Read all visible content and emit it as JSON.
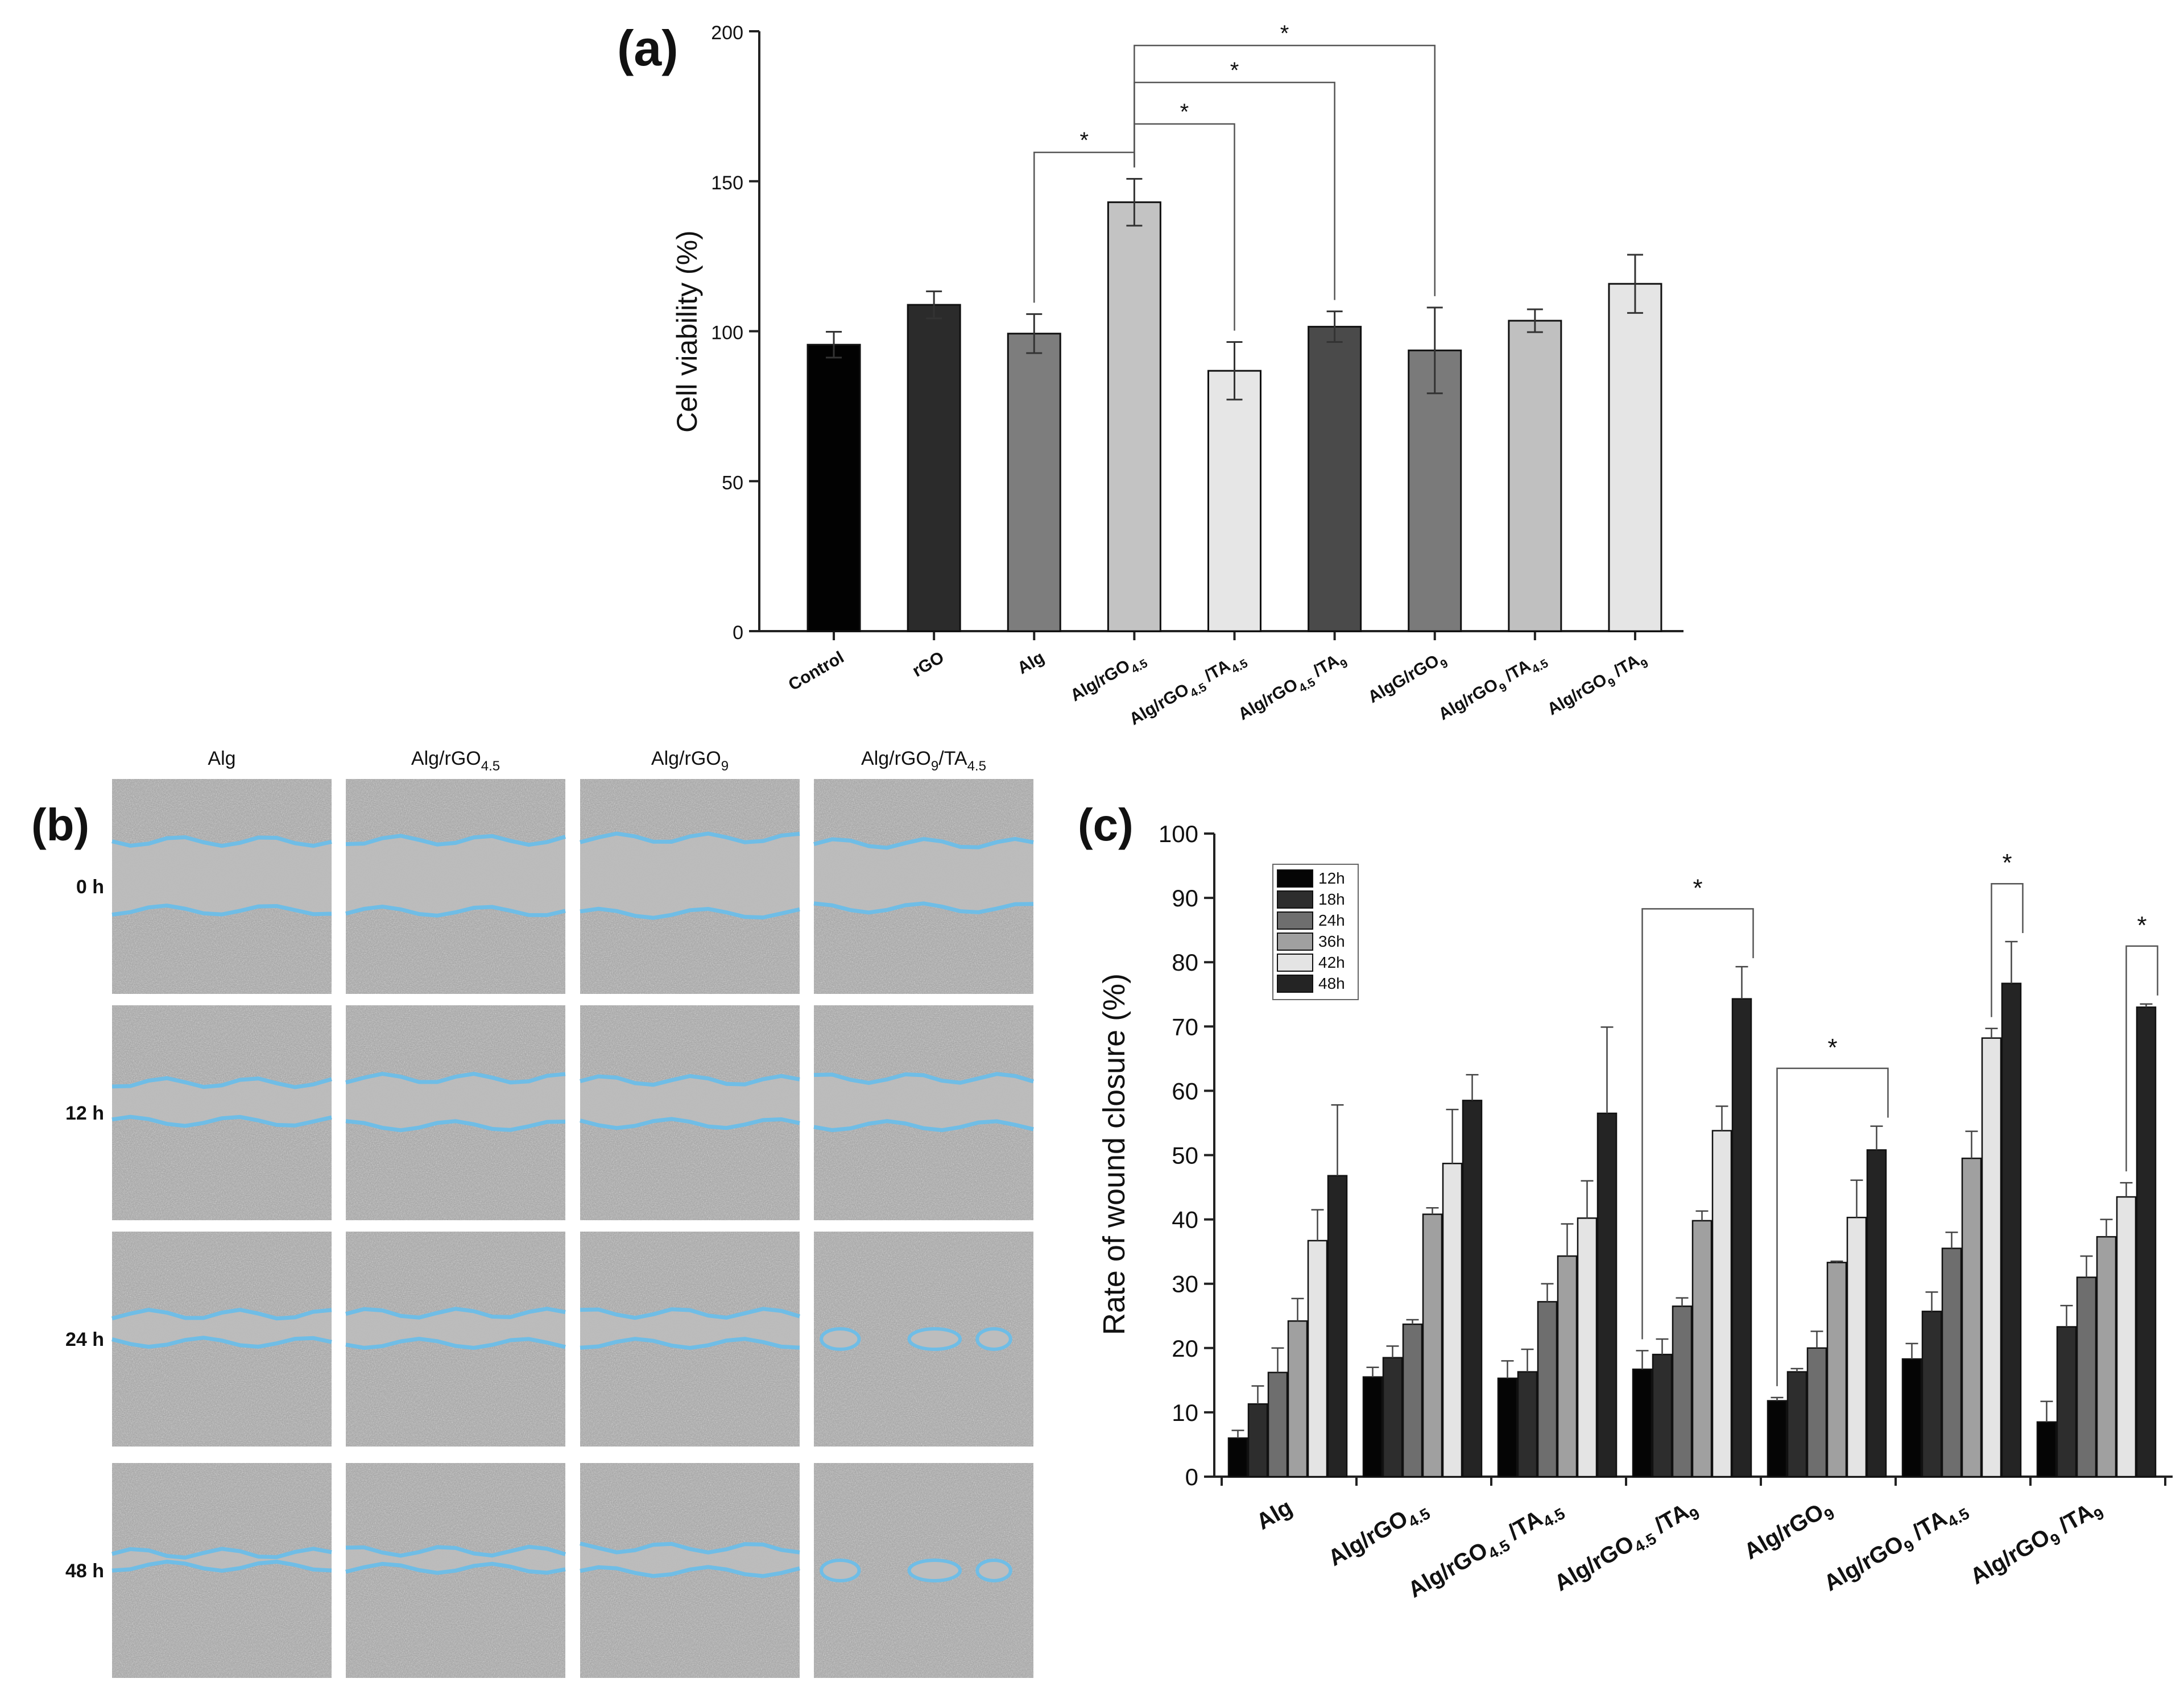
{
  "panel_labels": {
    "a": "(a)",
    "b": "(b)",
    "c": "(c)"
  },
  "chart_data": [
    {
      "id": "a",
      "type": "bar",
      "ylabel": "Cell viability (%)",
      "xlabel": "",
      "ylim": [
        0,
        200
      ],
      "yticks": [
        0,
        50,
        100,
        150,
        200
      ],
      "categories": [
        {
          "name": "Control",
          "base": "Control",
          "sub": ""
        },
        {
          "name": "rGO",
          "base": "rGO",
          "sub": ""
        },
        {
          "name": "Alg",
          "base": "Alg",
          "sub": ""
        },
        {
          "name": "Alg/rGO4.5",
          "base": "Alg/rGO",
          "sub": "4.5"
        },
        {
          "name": "Alg/rGO4.5 /TA4.5",
          "parts": [
            [
              "Alg/rGO",
              ""
            ],
            [
              "4.5",
              "sub"
            ],
            [
              " /TA",
              ""
            ],
            [
              "4.5",
              "sub"
            ]
          ]
        },
        {
          "name": "Alg/rGO4.5 /TA9",
          "parts": [
            [
              "Alg/rGO",
              ""
            ],
            [
              "4.5",
              "sub"
            ],
            [
              " /TA",
              ""
            ],
            [
              "9",
              "sub"
            ]
          ]
        },
        {
          "name": "AlgG/rGO9",
          "parts": [
            [
              "AlgG/rGO",
              ""
            ],
            [
              "9",
              "sub"
            ]
          ]
        },
        {
          "name": "Alg/rGO9 /TA4.5",
          "parts": [
            [
              "Alg/rGO",
              ""
            ],
            [
              "9",
              "sub"
            ],
            [
              " /TA",
              ""
            ],
            [
              "4.5",
              "sub"
            ]
          ]
        },
        {
          "name": "Alg/rGO9 /TA9",
          "parts": [
            [
              "Alg/rGO",
              ""
            ],
            [
              "9",
              "sub"
            ],
            [
              " /TA",
              ""
            ],
            [
              "9",
              "sub"
            ]
          ]
        }
      ],
      "values": [
        95.5,
        108.8,
        99.2,
        143.0,
        86.8,
        101.5,
        93.6,
        103.5,
        115.8
      ],
      "errors": [
        4.3,
        4.5,
        6.5,
        7.8,
        9.6,
        5.1,
        14.3,
        3.8,
        9.7
      ],
      "colors": [
        "#020202",
        "#2b2b2b",
        "#7d7d7d",
        "#c3c3c3",
        "#e6e6e6",
        "#4a4a4a",
        "#7a7a7a",
        "#c0c0c0",
        "#e5e5e5"
      ],
      "significance": [
        {
          "from": 2,
          "to": 3,
          "label": "*"
        },
        {
          "from": 3,
          "to": 4,
          "label": "*"
        },
        {
          "from": 3,
          "to": 5,
          "label": "*"
        },
        {
          "from": 3,
          "to": 6,
          "label": "*"
        }
      ]
    },
    {
      "id": "c",
      "type": "bar",
      "ylabel": "Rate of wound closure (%)",
      "xlabel": "",
      "ylim": [
        0,
        100
      ],
      "yticks": [
        0,
        10,
        20,
        30,
        40,
        50,
        60,
        70,
        80,
        90,
        100
      ],
      "legend_position": "top-left",
      "categories": [
        {
          "name": "Alg",
          "parts": [
            [
              "Alg",
              ""
            ]
          ]
        },
        {
          "name": "Alg/rGO4.5",
          "parts": [
            [
              "Alg/rGO",
              ""
            ],
            [
              "4.5",
              "sub"
            ]
          ]
        },
        {
          "name": "Alg/rGO4.5 /TA4.5",
          "parts": [
            [
              "Alg/rGO",
              ""
            ],
            [
              "4.5",
              "sub"
            ],
            [
              " /TA",
              ""
            ],
            [
              "4.5",
              "sub"
            ]
          ]
        },
        {
          "name": "Alg/rGO4.5 /TA9",
          "parts": [
            [
              "Alg/rGO",
              ""
            ],
            [
              "4.5",
              "sub"
            ],
            [
              " /TA",
              ""
            ],
            [
              "9",
              "sub"
            ]
          ]
        },
        {
          "name": "Alg/rGO9",
          "parts": [
            [
              "Alg/rGO",
              ""
            ],
            [
              "9",
              "sub"
            ]
          ]
        },
        {
          "name": "Alg/rGO9 /TA4.5",
          "parts": [
            [
              "Alg/rGO",
              ""
            ],
            [
              "9",
              "sub"
            ],
            [
              " /TA",
              ""
            ],
            [
              "4.5",
              "sub"
            ]
          ]
        },
        {
          "name": "Alg/rGO9 /TA9",
          "parts": [
            [
              "Alg/rGO",
              ""
            ],
            [
              "9",
              "sub"
            ],
            [
              " /TA",
              ""
            ],
            [
              "9",
              "sub"
            ]
          ]
        }
      ],
      "series": [
        {
          "name": "12h",
          "color": "#050505",
          "values": [
            6.0,
            15.5,
            15.3,
            16.7,
            11.8,
            18.3,
            8.5
          ],
          "errors": [
            1.2,
            1.5,
            2.7,
            2.9,
            0.5,
            2.4,
            3.2
          ]
        },
        {
          "name": "18h",
          "color": "#2d2d2d",
          "values": [
            11.3,
            18.5,
            16.3,
            19.0,
            16.3,
            25.7,
            23.3
          ],
          "errors": [
            2.8,
            1.8,
            3.5,
            2.4,
            0.5,
            3.0,
            3.3
          ]
        },
        {
          "name": "24h",
          "color": "#6e6e6e",
          "values": [
            16.2,
            23.7,
            27.2,
            26.5,
            20.0,
            35.5,
            31.0
          ],
          "errors": [
            3.8,
            0.7,
            2.8,
            1.3,
            2.6,
            2.5,
            3.3
          ]
        },
        {
          "name": "36h",
          "color": "#a0a0a0",
          "values": [
            24.2,
            40.8,
            34.3,
            39.8,
            33.3,
            49.5,
            37.3
          ],
          "errors": [
            3.5,
            1.0,
            5.0,
            1.5,
            0.2,
            4.2,
            2.7
          ]
        },
        {
          "name": "42h",
          "color": "#e4e4e4",
          "values": [
            36.7,
            48.7,
            40.2,
            53.8,
            40.3,
            68.2,
            43.5
          ],
          "errors": [
            4.8,
            8.4,
            5.8,
            3.8,
            5.8,
            1.5,
            2.2
          ]
        },
        {
          "name": "48h",
          "color": "#242424",
          "values": [
            46.8,
            58.5,
            56.5,
            74.3,
            50.8,
            76.7,
            73.0
          ],
          "errors": [
            11.0,
            4.0,
            13.4,
            5.0,
            3.7,
            6.5,
            0.5
          ]
        }
      ],
      "significance": [
        {
          "category": 3,
          "from_series": 0,
          "to_series": 5,
          "label": "*"
        },
        {
          "category": 4,
          "from_series": 0,
          "to_series": 5,
          "label": "*"
        },
        {
          "category": 5,
          "from_series": 4,
          "to_series": 5,
          "label": "*"
        },
        {
          "category": 6,
          "from_series": 4,
          "to_series": 5,
          "label": "*"
        }
      ]
    }
  ],
  "micrographs": {
    "columns": [
      {
        "name": "Alg",
        "parts": [
          [
            "Alg",
            ""
          ]
        ]
      },
      {
        "name": "Alg/rGO4.5",
        "parts": [
          [
            "Alg/rGO",
            ""
          ],
          [
            "4.5",
            "sub"
          ]
        ]
      },
      {
        "name": "Alg/rGO9",
        "parts": [
          [
            "Alg/rGO",
            ""
          ],
          [
            "9",
            "sub"
          ]
        ]
      },
      {
        "name": "Alg/rGO9/TA4.5",
        "parts": [
          [
            "Alg/rGO",
            ""
          ],
          [
            "9",
            "sub"
          ],
          [
            "/TA",
            ""
          ],
          [
            "4.5",
            "sub"
          ]
        ]
      }
    ],
    "rows": [
      "0 h",
      "12 h",
      "24 h",
      "48 h"
    ],
    "outline_color": "#6fbde6",
    "background_color": "#a6a6a6",
    "gap_color": "#bdbdbd"
  }
}
